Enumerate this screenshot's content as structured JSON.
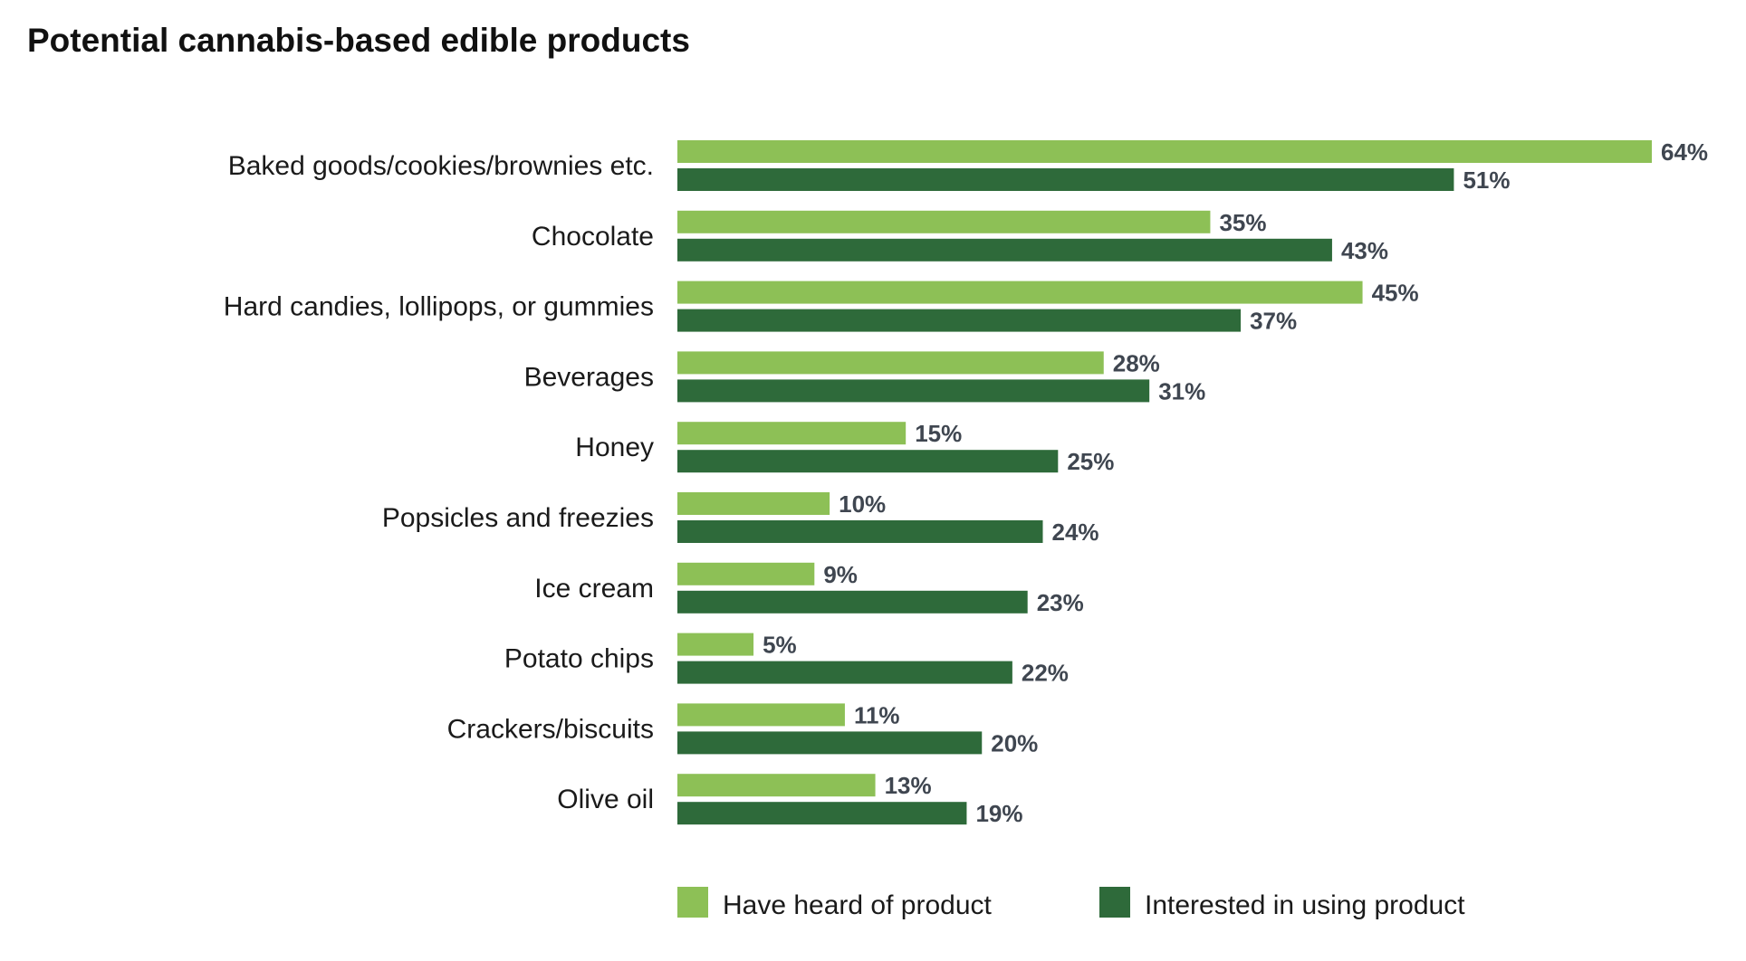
{
  "chart_data": {
    "type": "bar",
    "orientation": "horizontal",
    "title": "Potential cannabis-based edible products",
    "categories": [
      "Baked goods/cookies/brownies etc.",
      "Chocolate",
      "Hard candies, lollipops, or gummies",
      "Beverages",
      "Honey",
      "Popsicles and freezies",
      "Ice cream",
      "Potato chips",
      "Crackers/biscuits",
      "Olive oil"
    ],
    "series": [
      {
        "name": "Have heard of product",
        "color": "#8dc056",
        "values": [
          64,
          35,
          45,
          28,
          15,
          10,
          9,
          5,
          11,
          13
        ]
      },
      {
        "name": "Interested in using product",
        "color": "#2e6a3a",
        "values": [
          51,
          43,
          37,
          31,
          25,
          24,
          23,
          22,
          20,
          19
        ]
      }
    ],
    "value_suffix": "%",
    "xlim": [
      0,
      64
    ],
    "xlabel": "",
    "ylabel": "",
    "grid": false,
    "legend_position": "bottom"
  }
}
